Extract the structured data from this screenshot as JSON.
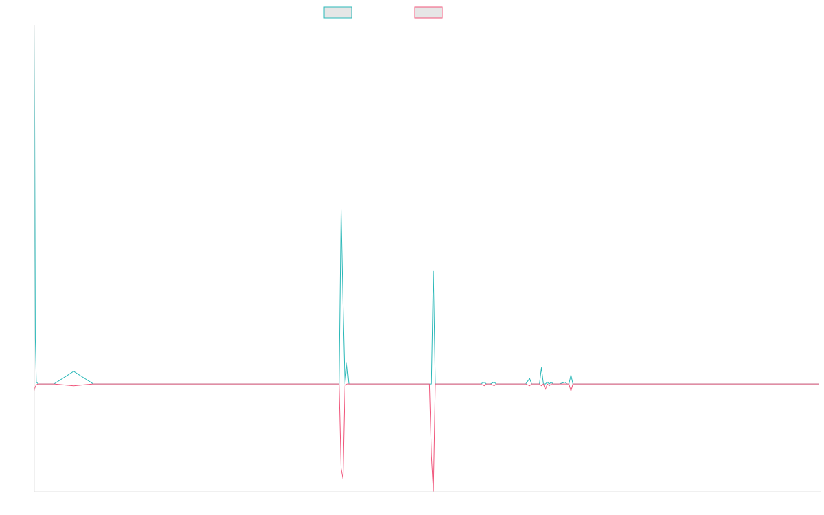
{
  "chart_data": {
    "type": "line",
    "title": "",
    "xlabel": "",
    "ylabel": "",
    "grid": false,
    "legend_placement": "top-center",
    "x": [
      0,
      0.2,
      0.5,
      1,
      2,
      3,
      4,
      5,
      10,
      20,
      30,
      40,
      50,
      60,
      70,
      80,
      90,
      100,
      110,
      120,
      130,
      140,
      150,
      155,
      156,
      157,
      158,
      159,
      160,
      161,
      162,
      165,
      170,
      180,
      190,
      200,
      201,
      202,
      203,
      204,
      210,
      220,
      227,
      229,
      230,
      231,
      232,
      234,
      235,
      236,
      240,
      250,
      252,
      253,
      254,
      257,
      258,
      259,
      260,
      261,
      262,
      263,
      264,
      265,
      266,
      267,
      270,
      271,
      272,
      273,
      274,
      275,
      280,
      300,
      320,
      340,
      360,
      380,
      399
    ],
    "xlim": [
      0,
      400
    ],
    "ylim": [
      -60,
      200
    ],
    "series": [
      {
        "color": "#2ab8b8",
        "values": [
          200,
          140,
          25,
          1,
          0,
          0,
          0,
          0,
          0,
          7,
          0,
          0,
          0,
          0,
          0,
          0,
          0,
          0,
          0,
          0,
          0,
          0,
          0,
          0,
          97,
          45,
          0,
          12,
          0,
          0,
          0,
          0,
          0,
          0,
          0,
          0,
          0,
          0,
          63,
          0,
          0,
          0,
          0,
          1,
          0,
          0,
          0,
          1,
          0,
          0,
          0,
          0,
          3,
          0,
          0,
          0,
          9,
          0,
          0,
          1,
          0,
          1,
          0,
          0,
          0,
          0,
          1,
          0,
          0,
          5,
          0,
          0,
          0,
          0,
          0,
          0,
          0,
          0,
          0
        ]
      },
      {
        "color": "#f0547a",
        "values": [
          -4,
          -2.5,
          -1.5,
          -0.5,
          0,
          0,
          0,
          0,
          0,
          -1,
          0,
          0,
          0,
          0,
          0,
          0,
          0,
          0,
          0,
          0,
          0,
          0,
          0,
          0,
          -47,
          -53,
          -1,
          0,
          0,
          0,
          0,
          0,
          0,
          0,
          0,
          0,
          0,
          -40,
          -60,
          0,
          0,
          0,
          0,
          -1,
          0,
          0,
          0,
          -1,
          0,
          0,
          0,
          0,
          -1,
          0,
          0,
          0,
          -1,
          0,
          -3,
          0,
          -1,
          0,
          0,
          0,
          0,
          0,
          0,
          0,
          0,
          -4,
          0,
          0,
          0,
          0,
          0,
          0,
          0,
          0,
          0
        ]
      }
    ]
  }
}
